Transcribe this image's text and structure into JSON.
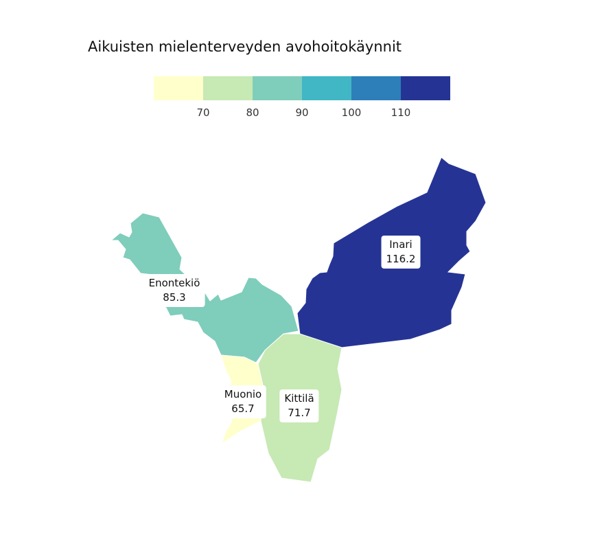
{
  "title": "Aikuisten mielenterveyden avohoitokäynnit",
  "legend": {
    "colors": [
      "#ffffcc",
      "#c7e9b4",
      "#7fcdbb",
      "#41b6c4",
      "#2c7fb8",
      "#253494"
    ],
    "breaks": [
      "70",
      "80",
      "90",
      "100",
      "110"
    ]
  },
  "regions": [
    {
      "key": "enontekio",
      "name": "Enontekiö",
      "value": "85.3",
      "color": "#7fcdbb"
    },
    {
      "key": "inari",
      "name": "Inari",
      "value": "116.2",
      "color": "#253494"
    },
    {
      "key": "kittila",
      "name": "Kittilä",
      "value": "71.7",
      "color": "#c7e9b4"
    },
    {
      "key": "muonio",
      "name": "Muonio",
      "value": "65.7",
      "color": "#ffffcc"
    }
  ]
}
